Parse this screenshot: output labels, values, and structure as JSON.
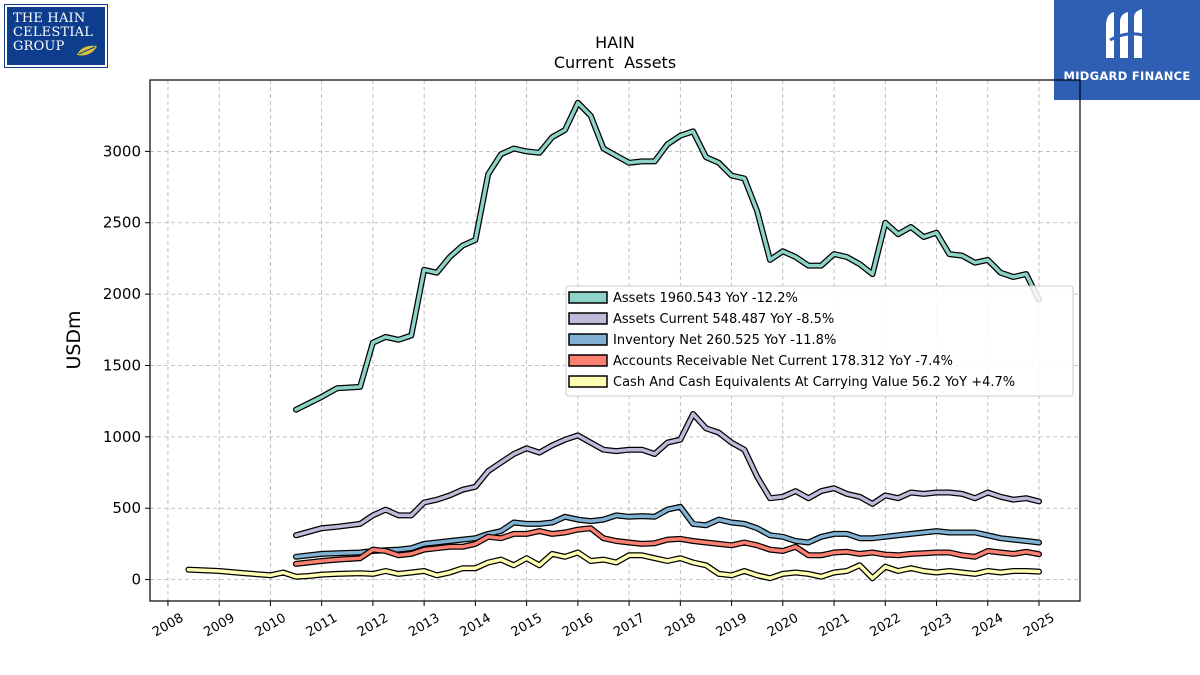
{
  "logos": {
    "left": {
      "lines": [
        "THE HAIN",
        "CELESTIAL",
        "GROUP"
      ],
      "background": "#0d3d8c",
      "icon": "leaf-icon"
    },
    "right": {
      "brand": "MIDGARD FINANCE",
      "background": "#2f5fb3",
      "icon": "midgard-mark-icon"
    }
  },
  "chart_data": {
    "type": "line",
    "title": "HAIN",
    "subtitle": "Current  Assets",
    "xlabel": "",
    "ylabel": "USDm",
    "xlim": [
      2007.65,
      2025.8
    ],
    "ylim": [
      -150,
      3500
    ],
    "grid": true,
    "legend_position": "center-right",
    "x_ticks": [
      "2008",
      "2009",
      "2010",
      "2011",
      "2012",
      "2013",
      "2014",
      "2015",
      "2016",
      "2017",
      "2018",
      "2019",
      "2020",
      "2021",
      "2022",
      "2023",
      "2024",
      "2025"
    ],
    "y_ticks": [
      0,
      500,
      1000,
      1500,
      2000,
      2500,
      3000
    ],
    "series": [
      {
        "name": "Assets  1960.543 YoY -12.2%",
        "color": "#8dd3c7",
        "points": [
          [
            2010.5,
            1190
          ],
          [
            2011.0,
            1280
          ],
          [
            2011.3,
            1340
          ],
          [
            2011.75,
            1350
          ],
          [
            2012.0,
            1660
          ],
          [
            2012.25,
            1700
          ],
          [
            2012.5,
            1680
          ],
          [
            2012.75,
            1710
          ],
          [
            2013.0,
            2170
          ],
          [
            2013.25,
            2150
          ],
          [
            2013.5,
            2260
          ],
          [
            2013.75,
            2340
          ],
          [
            2014.0,
            2380
          ],
          [
            2014.25,
            2840
          ],
          [
            2014.5,
            2980
          ],
          [
            2014.75,
            3020
          ],
          [
            2015.0,
            3000
          ],
          [
            2015.25,
            2990
          ],
          [
            2015.5,
            3100
          ],
          [
            2015.75,
            3150
          ],
          [
            2016.0,
            3340
          ],
          [
            2016.25,
            3250
          ],
          [
            2016.5,
            3020
          ],
          [
            2016.75,
            2970
          ],
          [
            2017.0,
            2920
          ],
          [
            2017.25,
            2930
          ],
          [
            2017.5,
            2930
          ],
          [
            2017.75,
            3050
          ],
          [
            2018.0,
            3110
          ],
          [
            2018.25,
            3140
          ],
          [
            2018.5,
            2960
          ],
          [
            2018.75,
            2920
          ],
          [
            2019.0,
            2830
          ],
          [
            2019.25,
            2810
          ],
          [
            2019.5,
            2580
          ],
          [
            2019.75,
            2240
          ],
          [
            2020.0,
            2300
          ],
          [
            2020.25,
            2260
          ],
          [
            2020.5,
            2200
          ],
          [
            2020.75,
            2200
          ],
          [
            2021.0,
            2280
          ],
          [
            2021.25,
            2260
          ],
          [
            2021.5,
            2210
          ],
          [
            2021.75,
            2140
          ],
          [
            2022.0,
            2500
          ],
          [
            2022.25,
            2420
          ],
          [
            2022.5,
            2470
          ],
          [
            2022.75,
            2400
          ],
          [
            2023.0,
            2430
          ],
          [
            2023.25,
            2280
          ],
          [
            2023.5,
            2270
          ],
          [
            2023.75,
            2220
          ],
          [
            2024.0,
            2240
          ],
          [
            2024.25,
            2150
          ],
          [
            2024.5,
            2120
          ],
          [
            2024.75,
            2140
          ],
          [
            2025.0,
            1960
          ]
        ]
      },
      {
        "name": "Assets Current  548.487 YoY -8.5%",
        "color": "#bebada",
        "points": [
          [
            2010.5,
            310
          ],
          [
            2011.0,
            360
          ],
          [
            2011.3,
            370
          ],
          [
            2011.75,
            390
          ],
          [
            2012.0,
            450
          ],
          [
            2012.25,
            490
          ],
          [
            2012.5,
            450
          ],
          [
            2012.75,
            450
          ],
          [
            2013.0,
            540
          ],
          [
            2013.25,
            560
          ],
          [
            2013.5,
            590
          ],
          [
            2013.75,
            630
          ],
          [
            2014.0,
            650
          ],
          [
            2014.25,
            760
          ],
          [
            2014.5,
            820
          ],
          [
            2014.75,
            880
          ],
          [
            2015.0,
            920
          ],
          [
            2015.25,
            890
          ],
          [
            2015.5,
            940
          ],
          [
            2015.75,
            980
          ],
          [
            2016.0,
            1010
          ],
          [
            2016.25,
            960
          ],
          [
            2016.5,
            910
          ],
          [
            2016.75,
            900
          ],
          [
            2017.0,
            910
          ],
          [
            2017.25,
            910
          ],
          [
            2017.5,
            880
          ],
          [
            2017.75,
            960
          ],
          [
            2018.0,
            980
          ],
          [
            2018.25,
            1160
          ],
          [
            2018.5,
            1060
          ],
          [
            2018.75,
            1030
          ],
          [
            2019.0,
            960
          ],
          [
            2019.25,
            910
          ],
          [
            2019.5,
            720
          ],
          [
            2019.75,
            570
          ],
          [
            2020.0,
            580
          ],
          [
            2020.25,
            620
          ],
          [
            2020.5,
            570
          ],
          [
            2020.75,
            620
          ],
          [
            2021.0,
            640
          ],
          [
            2021.25,
            600
          ],
          [
            2021.5,
            580
          ],
          [
            2021.75,
            530
          ],
          [
            2022.0,
            590
          ],
          [
            2022.25,
            570
          ],
          [
            2022.5,
            610
          ],
          [
            2022.75,
            600
          ],
          [
            2023.0,
            610
          ],
          [
            2023.25,
            610
          ],
          [
            2023.5,
            600
          ],
          [
            2023.75,
            570
          ],
          [
            2024.0,
            610
          ],
          [
            2024.25,
            580
          ],
          [
            2024.5,
            560
          ],
          [
            2024.75,
            570
          ],
          [
            2025.0,
            548
          ]
        ]
      },
      {
        "name": "Inventory Net  260.525 YoY -11.8%",
        "color": "#80b1d3",
        "points": [
          [
            2010.5,
            160
          ],
          [
            2011.0,
            180
          ],
          [
            2011.3,
            185
          ],
          [
            2011.75,
            190
          ],
          [
            2012.0,
            200
          ],
          [
            2012.25,
            205
          ],
          [
            2012.5,
            210
          ],
          [
            2012.75,
            220
          ],
          [
            2013.0,
            250
          ],
          [
            2013.25,
            260
          ],
          [
            2013.5,
            270
          ],
          [
            2013.75,
            280
          ],
          [
            2014.0,
            290
          ],
          [
            2014.25,
            320
          ],
          [
            2014.5,
            340
          ],
          [
            2014.75,
            400
          ],
          [
            2015.0,
            390
          ],
          [
            2015.25,
            390
          ],
          [
            2015.5,
            400
          ],
          [
            2015.75,
            440
          ],
          [
            2016.0,
            420
          ],
          [
            2016.25,
            410
          ],
          [
            2016.5,
            420
          ],
          [
            2016.75,
            450
          ],
          [
            2017.0,
            440
          ],
          [
            2017.25,
            445
          ],
          [
            2017.5,
            440
          ],
          [
            2017.75,
            490
          ],
          [
            2018.0,
            510
          ],
          [
            2018.25,
            390
          ],
          [
            2018.5,
            380
          ],
          [
            2018.75,
            420
          ],
          [
            2019.0,
            400
          ],
          [
            2019.25,
            390
          ],
          [
            2019.5,
            360
          ],
          [
            2019.75,
            310
          ],
          [
            2020.0,
            300
          ],
          [
            2020.25,
            270
          ],
          [
            2020.5,
            260
          ],
          [
            2020.75,
            300
          ],
          [
            2021.0,
            320
          ],
          [
            2021.25,
            320
          ],
          [
            2021.5,
            290
          ],
          [
            2021.75,
            290
          ],
          [
            2022.0,
            300
          ],
          [
            2022.25,
            310
          ],
          [
            2022.5,
            320
          ],
          [
            2022.75,
            330
          ],
          [
            2023.0,
            340
          ],
          [
            2023.25,
            330
          ],
          [
            2023.5,
            330
          ],
          [
            2023.75,
            330
          ],
          [
            2024.0,
            310
          ],
          [
            2024.25,
            290
          ],
          [
            2024.5,
            280
          ],
          [
            2024.75,
            270
          ],
          [
            2025.0,
            260
          ]
        ]
      },
      {
        "name": "Accounts Receivable Net Current  178.312 YoY -7.4%",
        "color": "#fb8072",
        "points": [
          [
            2010.5,
            110
          ],
          [
            2011.0,
            130
          ],
          [
            2011.3,
            140
          ],
          [
            2011.75,
            150
          ],
          [
            2012.0,
            210
          ],
          [
            2012.25,
            200
          ],
          [
            2012.5,
            170
          ],
          [
            2012.75,
            180
          ],
          [
            2013.0,
            210
          ],
          [
            2013.25,
            220
          ],
          [
            2013.5,
            230
          ],
          [
            2013.75,
            230
          ],
          [
            2014.0,
            250
          ],
          [
            2014.25,
            300
          ],
          [
            2014.5,
            290
          ],
          [
            2014.75,
            320
          ],
          [
            2015.0,
            320
          ],
          [
            2015.25,
            340
          ],
          [
            2015.5,
            320
          ],
          [
            2015.75,
            330
          ],
          [
            2016.0,
            350
          ],
          [
            2016.25,
            360
          ],
          [
            2016.5,
            290
          ],
          [
            2016.75,
            270
          ],
          [
            2017.0,
            260
          ],
          [
            2017.25,
            250
          ],
          [
            2017.5,
            255
          ],
          [
            2017.75,
            280
          ],
          [
            2018.0,
            285
          ],
          [
            2018.25,
            270
          ],
          [
            2018.5,
            260
          ],
          [
            2018.75,
            250
          ],
          [
            2019.0,
            240
          ],
          [
            2019.25,
            260
          ],
          [
            2019.5,
            240
          ],
          [
            2019.75,
            210
          ],
          [
            2020.0,
            200
          ],
          [
            2020.25,
            230
          ],
          [
            2020.5,
            170
          ],
          [
            2020.75,
            170
          ],
          [
            2021.0,
            190
          ],
          [
            2021.25,
            195
          ],
          [
            2021.5,
            180
          ],
          [
            2021.75,
            190
          ],
          [
            2022.0,
            175
          ],
          [
            2022.25,
            170
          ],
          [
            2022.5,
            180
          ],
          [
            2022.75,
            185
          ],
          [
            2023.0,
            190
          ],
          [
            2023.25,
            190
          ],
          [
            2023.5,
            170
          ],
          [
            2023.75,
            160
          ],
          [
            2024.0,
            200
          ],
          [
            2024.25,
            190
          ],
          [
            2024.5,
            180
          ],
          [
            2024.75,
            195
          ],
          [
            2025.0,
            178
          ]
        ]
      },
      {
        "name": "Cash And Cash Equivalents At Carrying Value  56.2 YoY +4.7%",
        "color": "#ffffb3",
        "points": [
          [
            2008.4,
            70
          ],
          [
            2009.0,
            60
          ],
          [
            2009.5,
            45
          ],
          [
            2010.0,
            30
          ],
          [
            2010.25,
            50
          ],
          [
            2010.5,
            20
          ],
          [
            2010.75,
            25
          ],
          [
            2011.0,
            35
          ],
          [
            2011.3,
            40
          ],
          [
            2011.75,
            45
          ],
          [
            2012.0,
            40
          ],
          [
            2012.25,
            60
          ],
          [
            2012.5,
            40
          ],
          [
            2012.75,
            50
          ],
          [
            2013.0,
            60
          ],
          [
            2013.25,
            30
          ],
          [
            2013.5,
            50
          ],
          [
            2013.75,
            80
          ],
          [
            2014.0,
            80
          ],
          [
            2014.25,
            120
          ],
          [
            2014.5,
            140
          ],
          [
            2014.75,
            100
          ],
          [
            2015.0,
            150
          ],
          [
            2015.25,
            100
          ],
          [
            2015.5,
            180
          ],
          [
            2015.75,
            160
          ],
          [
            2016.0,
            190
          ],
          [
            2016.25,
            130
          ],
          [
            2016.5,
            140
          ],
          [
            2016.75,
            120
          ],
          [
            2017.0,
            170
          ],
          [
            2017.25,
            170
          ],
          [
            2017.5,
            150
          ],
          [
            2017.75,
            130
          ],
          [
            2018.0,
            150
          ],
          [
            2018.25,
            120
          ],
          [
            2018.5,
            100
          ],
          [
            2018.75,
            40
          ],
          [
            2019.0,
            30
          ],
          [
            2019.25,
            60
          ],
          [
            2019.5,
            30
          ],
          [
            2019.75,
            10
          ],
          [
            2020.0,
            40
          ],
          [
            2020.25,
            50
          ],
          [
            2020.5,
            40
          ],
          [
            2020.75,
            20
          ],
          [
            2021.0,
            50
          ],
          [
            2021.25,
            60
          ],
          [
            2021.5,
            100
          ],
          [
            2021.75,
            10
          ],
          [
            2022.0,
            90
          ],
          [
            2022.25,
            60
          ],
          [
            2022.5,
            80
          ],
          [
            2022.75,
            60
          ],
          [
            2023.0,
            50
          ],
          [
            2023.25,
            60
          ],
          [
            2023.5,
            50
          ],
          [
            2023.75,
            40
          ],
          [
            2024.0,
            60
          ],
          [
            2024.25,
            50
          ],
          [
            2024.5,
            60
          ],
          [
            2024.75,
            60
          ],
          [
            2025.0,
            56
          ]
        ]
      }
    ]
  }
}
